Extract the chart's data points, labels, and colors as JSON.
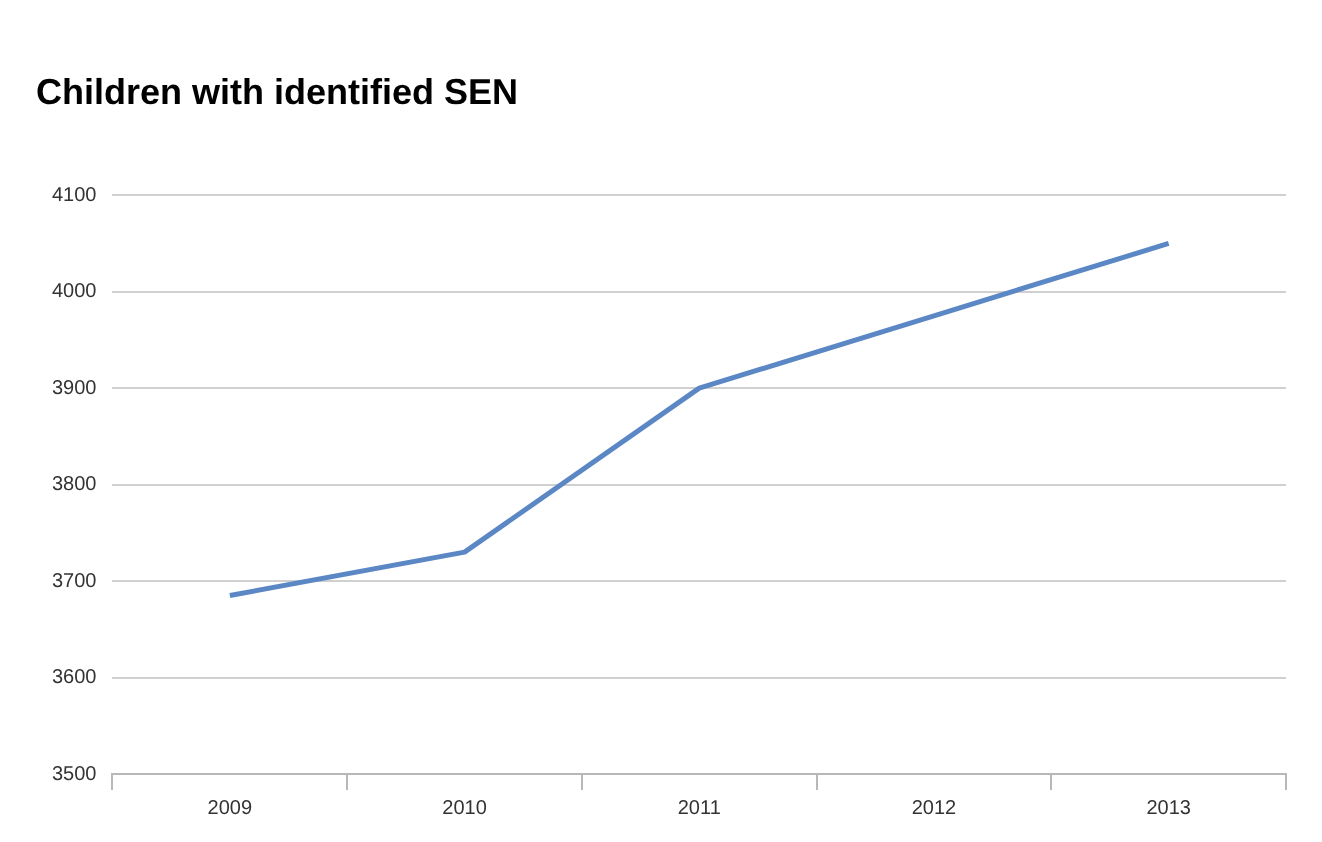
{
  "chart_data": {
    "type": "line",
    "title": "Children with identified SEN",
    "categories": [
      "2009",
      "2010",
      "2011",
      "2012",
      "2013"
    ],
    "series": [
      {
        "color": "#5b87c5",
        "values": [
          3685,
          3730,
          3900,
          3975,
          4050
        ]
      }
    ],
    "ylim": [
      3500,
      4100
    ],
    "yticks": [
      3500,
      3600,
      3700,
      3800,
      3900,
      4000,
      4100
    ],
    "grid": "y",
    "legend": false,
    "marker": "none"
  }
}
